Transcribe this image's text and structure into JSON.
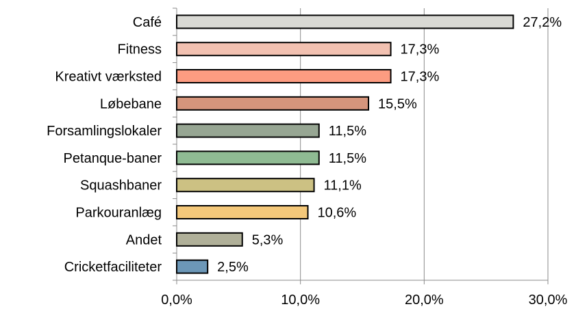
{
  "chart_data": {
    "type": "bar",
    "orientation": "horizontal",
    "categories": [
      "Café",
      "Fitness",
      "Kreativt værksted",
      "Løbebane",
      "Forsamlingslokaler",
      "Petanque-baner",
      "Squashbaner",
      "Parkouranlæg",
      "Andet",
      "Cricketfaciliteter"
    ],
    "values": [
      27.2,
      17.3,
      17.3,
      15.5,
      11.5,
      11.5,
      11.1,
      10.6,
      5.3,
      2.5
    ],
    "data_labels": [
      "27,2%",
      "17,3%",
      "17,3%",
      "15,5%",
      "11,5%",
      "11,5%",
      "11,1%",
      "10,6%",
      "5,3%",
      "2,5%"
    ],
    "bar_colors": [
      "#d9d9d4",
      "#f2c1b1",
      "#fd9c81",
      "#d6957c",
      "#97a693",
      "#8fbb93",
      "#ccc183",
      "#f4c87a",
      "#b0b099",
      "#6c97b7"
    ],
    "x_ticks": [
      0,
      10,
      20,
      30
    ],
    "x_tick_labels": [
      "0,0%",
      "10,0%",
      "20,0%",
      "30,0%"
    ],
    "xlim": [
      0,
      30
    ],
    "grid": true,
    "legend": "none",
    "title": "",
    "xlabel": "",
    "ylabel": ""
  }
}
